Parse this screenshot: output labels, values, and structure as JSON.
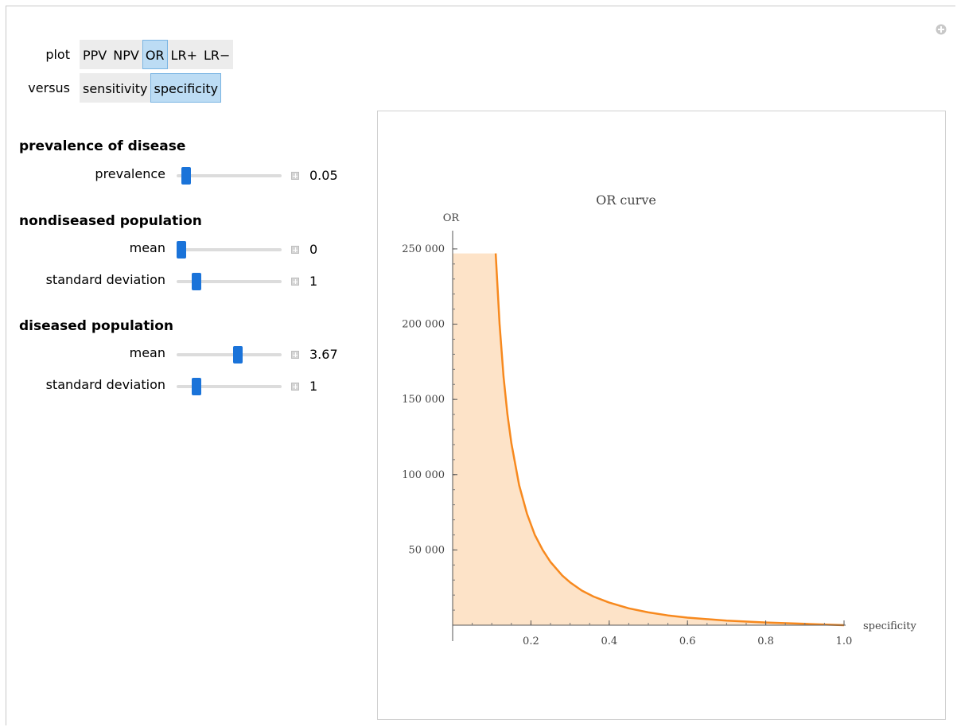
{
  "controls": {
    "plot": {
      "label": "plot",
      "options": [
        "PPV",
        "NPV",
        "OR",
        "LR+",
        "LR−"
      ],
      "selected": "OR"
    },
    "versus": {
      "label": "versus",
      "options": [
        "sensitivity",
        "specificity"
      ],
      "selected": "specificity"
    }
  },
  "sections": {
    "prevalence": {
      "title": "prevalence of disease",
      "prevalence": {
        "label": "prevalence",
        "value": "0.05",
        "fraction": 0.05
      }
    },
    "nondiseased": {
      "title": "nondiseased population",
      "mean": {
        "label": "mean",
        "value": "0",
        "fraction": 0.0
      },
      "sd": {
        "label": "standard deviation",
        "value": "1",
        "fraction": 0.16
      }
    },
    "diseased": {
      "title": "diseased population",
      "mean": {
        "label": "mean",
        "value": "3.67",
        "fraction": 0.59
      },
      "sd": {
        "label": "standard deviation",
        "value": "1",
        "fraction": 0.16
      }
    }
  },
  "colors": {
    "curve": "#f7891e",
    "fill": "#fde3c8",
    "active_button": "#bcdcf4",
    "slider_thumb": "#1a73d9"
  },
  "chart_data": {
    "type": "area",
    "title": "OR curve",
    "xlabel": "specificity",
    "ylabel": "OR",
    "xlim": [
      0,
      1.0
    ],
    "ylim": [
      0,
      260000
    ],
    "x_ticks": [
      "0.2",
      "0.4",
      "0.6",
      "0.8",
      "1.0"
    ],
    "y_ticks": [
      "50 000",
      "100 000",
      "150 000",
      "200 000",
      "250 000"
    ],
    "x_tick_values": [
      0.2,
      0.4,
      0.6,
      0.8,
      1.0
    ],
    "y_tick_values": [
      50000,
      100000,
      150000,
      200000,
      250000
    ],
    "series": [
      {
        "x": [
          0.0,
          0.11,
          0.12,
          0.13,
          0.14,
          0.15,
          0.17,
          0.19,
          0.21,
          0.23,
          0.25,
          0.28,
          0.3,
          0.33,
          0.36,
          0.4,
          0.45,
          0.5,
          0.55,
          0.6,
          0.7,
          0.8,
          0.9,
          1.0
        ],
        "y": [
          247000,
          247000,
          200000,
          165000,
          140000,
          121000,
          93000,
          74000,
          60000,
          50000,
          42000,
          33000,
          28500,
          23000,
          19000,
          15000,
          11200,
          8500,
          6500,
          5000,
          3000,
          1800,
          900,
          0
        ]
      }
    ]
  }
}
